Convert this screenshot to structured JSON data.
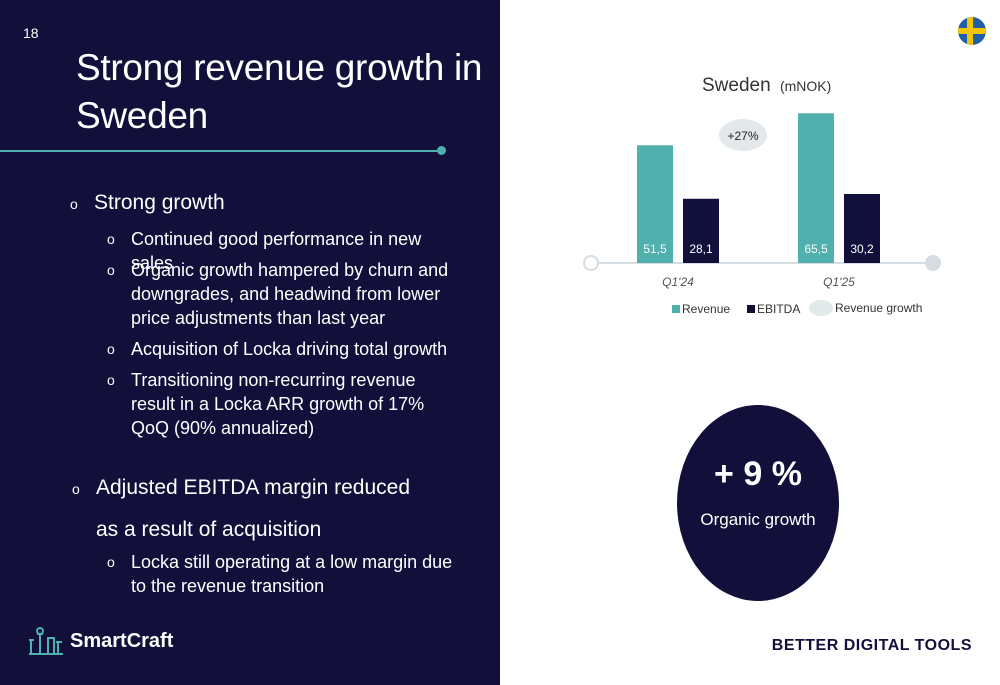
{
  "slide": {
    "page_number": "18",
    "title": "Strong revenue growth in Sweden",
    "bullets": {
      "b1": "Strong growth",
      "b1_1": "Continued good performance in new sales",
      "b1_2": "Organic growth hampered by churn and downgrades, and headwind from lower price adjustments than last year",
      "b1_3": "Acquisition of Locka driving total growth",
      "b1_4": "Transitioning non-recurring revenue result in a Locka ARR growth of 17% QoQ (90% annualized)",
      "b2": "Adjusted EBITDA margin reduced as a result of acquisition",
      "b2_1": "Locka still operating at a low margin due to the revenue transition"
    },
    "logo_text": "SmartCraft",
    "tagline": "BETTER DIGITAL TOOLS",
    "organic_growth": {
      "value": "+ 9 %",
      "label": "Organic growth"
    },
    "icons": [
      "flag-sweden-icon",
      "smartcraft-logo-icon"
    ]
  },
  "chart_data": {
    "type": "bar",
    "title": "Sweden",
    "subtitle": "(mNOK)",
    "categories": [
      "Q1'24",
      "Q1'25"
    ],
    "series": [
      {
        "name": "Revenue",
        "values": [
          51.5,
          65.5
        ],
        "labels": [
          "51,5",
          "65,5"
        ],
        "color": "#4fb0ae"
      },
      {
        "name": "EBITDA",
        "values": [
          28.1,
          30.2
        ],
        "labels": [
          "28,1",
          "30,2"
        ],
        "color": "#12103a"
      }
    ],
    "annotation": "+27%",
    "legend_extra": "Revenue growth",
    "ylim": [
      0,
      70
    ],
    "legend": "bottom",
    "grid": false
  }
}
